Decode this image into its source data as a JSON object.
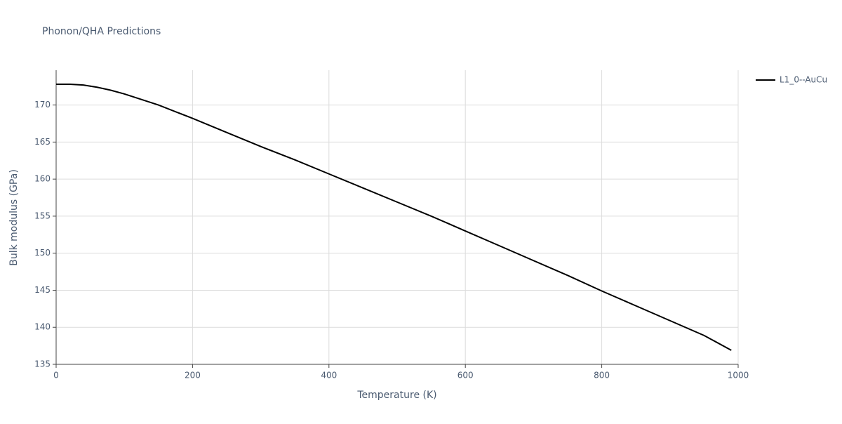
{
  "chart_data": {
    "type": "line",
    "title": "Phonon/QHA Predictions",
    "x_label": "Temperature (K)",
    "y_label": "Bulk modulus (GPa)",
    "x": [
      0,
      20,
      40,
      60,
      80,
      100,
      150,
      200,
      250,
      300,
      350,
      400,
      450,
      500,
      550,
      600,
      650,
      700,
      750,
      800,
      850,
      900,
      950,
      990
    ],
    "series": [
      {
        "name": "L1_0--AuCu",
        "color": "#000000",
        "values": [
          172.8,
          172.8,
          172.7,
          172.4,
          172.0,
          171.5,
          170.0,
          168.2,
          166.3,
          164.4,
          162.6,
          160.7,
          158.8,
          156.9,
          155.0,
          153.0,
          151.0,
          149.0,
          147.0,
          144.9,
          142.9,
          140.9,
          138.9,
          136.9
        ]
      }
    ],
    "xlim": [
      0,
      1000
    ],
    "xticks": [
      0,
      200,
      400,
      600,
      800,
      1000
    ],
    "ylim": [
      135,
      174.7
    ],
    "yticks": [
      135,
      140,
      145,
      150,
      155,
      160,
      165,
      170
    ],
    "grid": true,
    "legend": "right"
  }
}
